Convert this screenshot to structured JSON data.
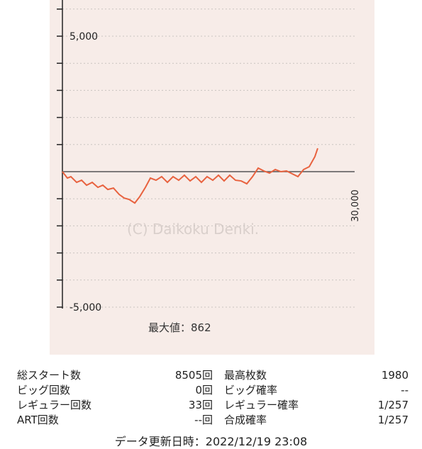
{
  "chart_data": {
    "type": "line",
    "title": "最大値：",
    "max_value": 862,
    "watermark": "(C) Daikoku Denki.",
    "x": [
      0,
      510,
      870,
      1460,
      1970,
      2480,
      3060,
      3640,
      4150,
      4660,
      5240,
      5830,
      6340,
      6850,
      7430,
      7940,
      8520,
      9030,
      9610,
      10190,
      10780,
      11360,
      11940,
      12520,
      13110,
      13690,
      14270,
      14850,
      15440,
      16020,
      16600,
      17180,
      17770,
      18350,
      18930,
      19520,
      20100,
      20680,
      21260,
      21850,
      22430,
      23010,
      23590,
      24180,
      24760,
      25340,
      25920,
      26210
    ],
    "series": [
      {
        "color": "#e8623f",
        "values": [
          0,
          -237,
          -184,
          -395,
          -316,
          -500,
          -395,
          -579,
          -500,
          -658,
          -605,
          -842,
          -974,
          -1026,
          -1158,
          -921,
          -579,
          -237,
          -316,
          -184,
          -395,
          -184,
          -316,
          -132,
          -342,
          -184,
          -395,
          -184,
          -316,
          -132,
          -342,
          -132,
          -316,
          -342,
          -447,
          -184,
          132,
          26,
          -53,
          79,
          0,
          26,
          -79,
          -184,
          79,
          184,
          553,
          862
        ]
      }
    ],
    "xlim": [
      0,
      30000
    ],
    "xticks": [
      {
        "value": 30000,
        "label": "30,000"
      }
    ],
    "ylim": [
      -5000,
      6000
    ],
    "yticks": [
      {
        "value": 5000,
        "label": "5,000"
      },
      {
        "value": -5000,
        "label": "-5,000"
      }
    ],
    "minor_yticks": [
      -4000,
      -3000,
      -2000,
      -1000,
      1000,
      2000,
      3000,
      4000,
      6000
    ],
    "grid": true
  },
  "table": {
    "rows": [
      [
        "総スタート数",
        "8505回",
        "最高枚数",
        "1980"
      ],
      [
        "ビッグ回数",
        "0回",
        "ビッグ確率",
        "--"
      ],
      [
        "レギュラー回数",
        "33回",
        "レギュラー確率",
        "1/257"
      ],
      [
        "ART回数",
        "--回",
        "合成確率",
        "1/257"
      ]
    ]
  },
  "footer": "データ更新日時：2022/12/19 23:08"
}
